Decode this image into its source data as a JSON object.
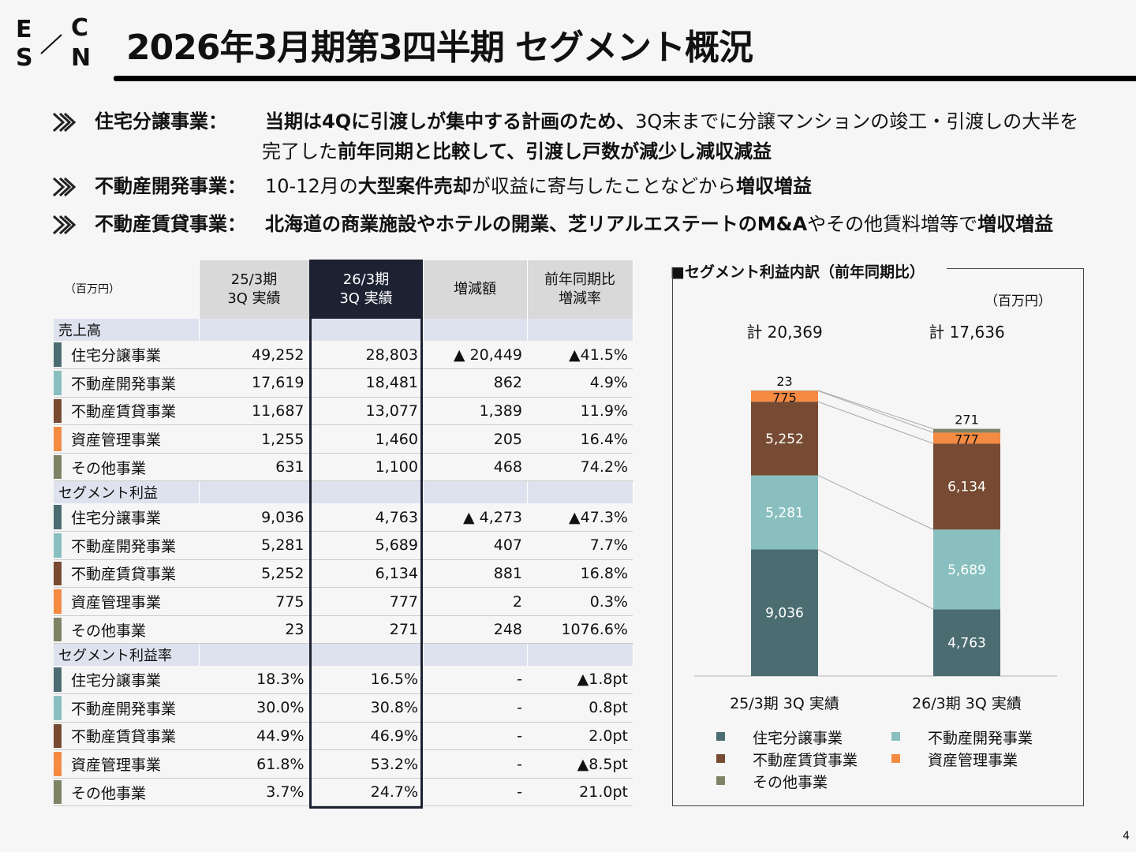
{
  "logo": {
    "letters": [
      "E",
      "C",
      "S",
      "N"
    ]
  },
  "title": "2026年3月期第3四半期 セグメント概況",
  "bullets": [
    {
      "label": "住宅分譲事業：",
      "lines": [
        [
          {
            "t": "当期は4Qに引渡しが集中する計画のため、",
            "b": true
          },
          {
            "t": "3Q末までに分譲マンションの竣工・引渡しの大半を",
            "b": false
          }
        ],
        [
          {
            "t": "完了した",
            "b": false
          },
          {
            "t": "前年同期と比較して、引渡し戸数が減少し減収減益",
            "b": true
          }
        ]
      ]
    },
    {
      "label": "不動産開発事業：",
      "lines": [
        [
          {
            "t": "10-12月の",
            "b": false
          },
          {
            "t": "大型案件売却",
            "b": true
          },
          {
            "t": "が収益に寄与したことなどから",
            "b": false
          },
          {
            "t": "増収増益",
            "b": true
          }
        ]
      ]
    },
    {
      "label": "不動産賃貸事業：",
      "lines": [
        [
          {
            "t": "北海道の商業施設やホテルの開業、芝リアルエステートのM&A",
            "b": true
          },
          {
            "t": "やその他賃料増等で",
            "b": false
          },
          {
            "t": "増収増益",
            "b": true
          }
        ]
      ]
    }
  ],
  "table": {
    "unit": "（百万円）",
    "headers": [
      "25/3期\n3Q 実績",
      "26/3期\n3Q 実績",
      "増減額",
      "前年同期比\n増減率"
    ],
    "sections": [
      {
        "name": "売上高",
        "rows": [
          [
            "住宅分譲事業",
            "49,252",
            "28,803",
            "▲ 20,449",
            "▲41.5%"
          ],
          [
            "不動産開発事業",
            "17,619",
            "18,481",
            "862",
            "4.9%"
          ],
          [
            "不動産賃貸事業",
            "11,687",
            "13,077",
            "1,389",
            "11.9%"
          ],
          [
            "資産管理事業",
            "1,255",
            "1,460",
            "205",
            "16.4%"
          ],
          [
            "その他事業",
            "631",
            "1,100",
            "468",
            "74.2%"
          ]
        ]
      },
      {
        "name": "セグメント利益",
        "rows": [
          [
            "住宅分譲事業",
            "9,036",
            "4,763",
            "▲ 4,273",
            "▲47.3%"
          ],
          [
            "不動産開発事業",
            "5,281",
            "5,689",
            "407",
            "7.7%"
          ],
          [
            "不動産賃貸事業",
            "5,252",
            "6,134",
            "881",
            "16.8%"
          ],
          [
            "資産管理事業",
            "775",
            "777",
            "2",
            "0.3%"
          ],
          [
            "その他事業",
            "23",
            "271",
            "248",
            "1076.6%"
          ]
        ]
      },
      {
        "name": "セグメント利益率",
        "rows": [
          [
            "住宅分譲事業",
            "18.3%",
            "16.5%",
            "-",
            "▲1.8pt"
          ],
          [
            "不動産開発事業",
            "30.0%",
            "30.8%",
            "-",
            "0.8pt"
          ],
          [
            "不動産賃貸事業",
            "44.9%",
            "46.9%",
            "-",
            "2.0pt"
          ],
          [
            "資産管理事業",
            "61.8%",
            "53.2%",
            "-",
            "▲8.5pt"
          ],
          [
            "その他事業",
            "3.7%",
            "24.7%",
            "-",
            "21.0pt"
          ]
        ]
      }
    ]
  },
  "colors": {
    "住宅分譲事業": "#4b6d72",
    "不動産開発事業": "#89c0bf",
    "不動産賃貸事業": "#774b33",
    "資産管理事業": "#f58a42",
    "その他事業": "#7d8466"
  },
  "chart_data": {
    "type": "bar",
    "stacked": true,
    "title": "■セグメント利益内訳（前年同期比）",
    "unit": "（百万円）",
    "categories": [
      "25/3期 3Q 実績",
      "26/3期 3Q 実績"
    ],
    "totals": [
      "計 20,369",
      "計 17,636"
    ],
    "series": [
      {
        "name": "住宅分譲事業",
        "values": [
          9036,
          4763
        ]
      },
      {
        "name": "不動産開発事業",
        "values": [
          5281,
          5689
        ]
      },
      {
        "name": "不動産賃貸事業",
        "values": [
          5252,
          6134
        ]
      },
      {
        "name": "資産管理事業",
        "values": [
          775,
          777
        ]
      },
      {
        "name": "その他事業",
        "values": [
          23,
          271
        ]
      }
    ]
  },
  "page_number": "4"
}
